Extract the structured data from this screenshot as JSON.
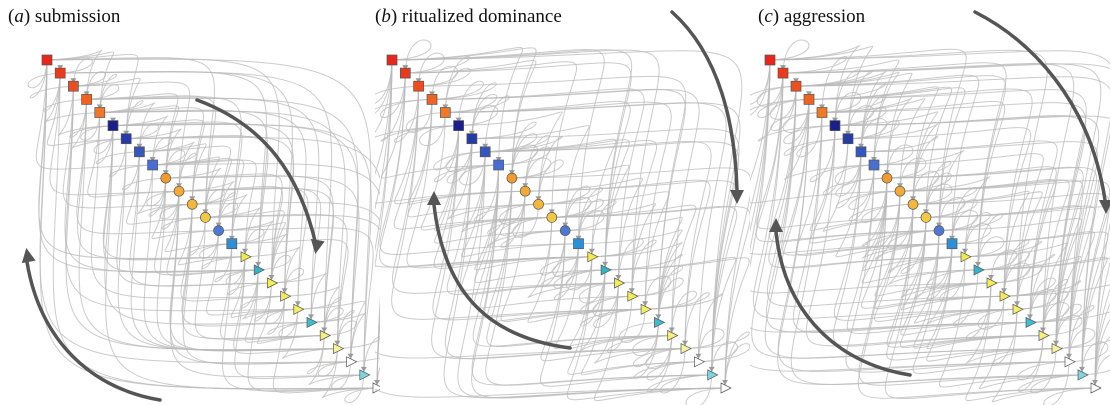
{
  "panels": [
    {
      "letter": "a",
      "title": "submission",
      "nodes": [
        {
          "shape": "square",
          "color": "#e8261c"
        },
        {
          "shape": "square",
          "color": "#ea3a1e"
        },
        {
          "shape": "square",
          "color": "#ec4e20"
        },
        {
          "shape": "square",
          "color": "#ef6222"
        },
        {
          "shape": "square",
          "color": "#f07826"
        },
        {
          "shape": "square",
          "color": "#1a1f8c"
        },
        {
          "shape": "square",
          "color": "#253ba6"
        },
        {
          "shape": "square",
          "color": "#3556bf"
        },
        {
          "shape": "square",
          "color": "#4a6ed0"
        },
        {
          "shape": "circle",
          "color": "#f29a2e"
        },
        {
          "shape": "circle",
          "color": "#f4aa36"
        },
        {
          "shape": "circle",
          "color": "#f5b63e"
        },
        {
          "shape": "circle",
          "color": "#f2c845"
        },
        {
          "shape": "circle",
          "color": "#4f78d2"
        },
        {
          "shape": "square",
          "color": "#2d8fd6"
        },
        {
          "shape": "triangle",
          "color": "#f2ea4c"
        },
        {
          "shape": "triangle",
          "color": "#34b3c9"
        },
        {
          "shape": "triangle",
          "color": "#f5ed55"
        },
        {
          "shape": "triangle",
          "color": "#f3eb5a"
        },
        {
          "shape": "triangle",
          "color": "#f5ef64"
        },
        {
          "shape": "triangle",
          "color": "#3cbdd0"
        },
        {
          "shape": "triangle",
          "color": "#f5ef80"
        },
        {
          "shape": "triangle",
          "color": "#f6f3a0"
        },
        {
          "shape": "triangle",
          "color": "#ffffff"
        },
        {
          "shape": "triangle",
          "color": "#7fd4de"
        },
        {
          "shape": "triangle",
          "color": "#ffffff"
        }
      ]
    },
    {
      "letter": "b",
      "title": "ritualized dominance",
      "nodes": [
        {
          "shape": "square",
          "color": "#e8261c"
        },
        {
          "shape": "square",
          "color": "#ea3a1e"
        },
        {
          "shape": "square",
          "color": "#ec4e20"
        },
        {
          "shape": "square",
          "color": "#ef6222"
        },
        {
          "shape": "square",
          "color": "#f07826"
        },
        {
          "shape": "square",
          "color": "#1a1f8c"
        },
        {
          "shape": "square",
          "color": "#253ba6"
        },
        {
          "shape": "square",
          "color": "#3556bf"
        },
        {
          "shape": "square",
          "color": "#4a6ed0"
        },
        {
          "shape": "circle",
          "color": "#f29a2e"
        },
        {
          "shape": "circle",
          "color": "#f4aa36"
        },
        {
          "shape": "circle",
          "color": "#f5b63e"
        },
        {
          "shape": "circle",
          "color": "#f2c845"
        },
        {
          "shape": "circle",
          "color": "#4f78d2"
        },
        {
          "shape": "square",
          "color": "#2d8fd6"
        },
        {
          "shape": "triangle",
          "color": "#f2ea4c"
        },
        {
          "shape": "triangle",
          "color": "#34b3c9"
        },
        {
          "shape": "triangle",
          "color": "#f5ed55"
        },
        {
          "shape": "triangle",
          "color": "#f3eb5a"
        },
        {
          "shape": "triangle",
          "color": "#f5ef64"
        },
        {
          "shape": "triangle",
          "color": "#3cbdd0"
        },
        {
          "shape": "triangle",
          "color": "#f5ef80"
        },
        {
          "shape": "triangle",
          "color": "#f6f3a0"
        },
        {
          "shape": "triangle",
          "color": "#ffffff"
        },
        {
          "shape": "triangle",
          "color": "#7fd4de"
        },
        {
          "shape": "triangle",
          "color": "#ffffff"
        }
      ]
    },
    {
      "letter": "c",
      "title": "aggression",
      "nodes": [
        {
          "shape": "square",
          "color": "#e8261c"
        },
        {
          "shape": "square",
          "color": "#ea3a1e"
        },
        {
          "shape": "square",
          "color": "#ec4e20"
        },
        {
          "shape": "square",
          "color": "#ef6222"
        },
        {
          "shape": "square",
          "color": "#f07826"
        },
        {
          "shape": "square",
          "color": "#1a1f8c"
        },
        {
          "shape": "square",
          "color": "#253ba6"
        },
        {
          "shape": "square",
          "color": "#3556bf"
        },
        {
          "shape": "square",
          "color": "#4a6ed0"
        },
        {
          "shape": "circle",
          "color": "#f29a2e"
        },
        {
          "shape": "circle",
          "color": "#f4aa36"
        },
        {
          "shape": "circle",
          "color": "#f5b63e"
        },
        {
          "shape": "circle",
          "color": "#f2c845"
        },
        {
          "shape": "circle",
          "color": "#4f78d2"
        },
        {
          "shape": "square",
          "color": "#2d8fd6"
        },
        {
          "shape": "triangle",
          "color": "#f2ea4c"
        },
        {
          "shape": "triangle",
          "color": "#34b3c9"
        },
        {
          "shape": "triangle",
          "color": "#f5ed55"
        },
        {
          "shape": "triangle",
          "color": "#f3eb5a"
        },
        {
          "shape": "triangle",
          "color": "#f5ef64"
        },
        {
          "shape": "triangle",
          "color": "#3cbdd0"
        },
        {
          "shape": "triangle",
          "color": "#f5ef80"
        },
        {
          "shape": "triangle",
          "color": "#f6f3a0"
        },
        {
          "shape": "triangle",
          "color": "#ffffff"
        },
        {
          "shape": "triangle",
          "color": "#7fd4de"
        },
        {
          "shape": "triangle",
          "color": "#ffffff"
        }
      ]
    }
  ],
  "colors": {
    "edge": "#b9b9b9",
    "arrow": "#555555",
    "label": "#111111"
  }
}
